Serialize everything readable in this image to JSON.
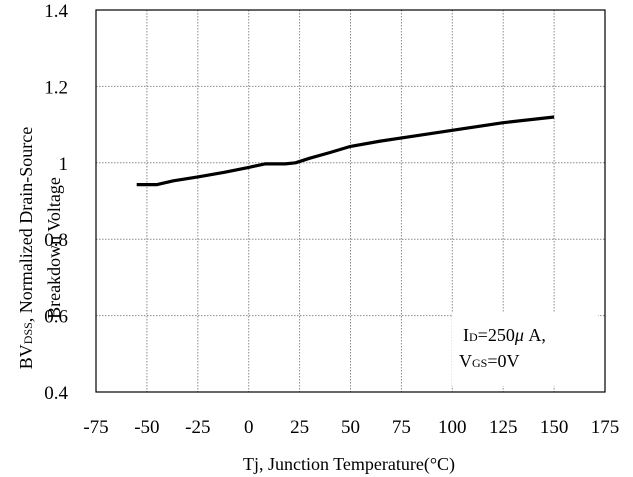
{
  "chart_data": {
    "type": "line",
    "title": "",
    "xlabel": "Tj, Junction Temperature(",
    "xlabel_unit": "°C)",
    "ylabel": {
      "bv": "BV",
      "dss": "DSS",
      "rest": ", Normalized Drain-Source",
      "line2": "Breakdown Voltage"
    },
    "xlim": [
      -75,
      175
    ],
    "ylim": [
      0.4,
      1.4
    ],
    "x_ticks": [
      -75,
      -50,
      -25,
      0,
      25,
      50,
      75,
      100,
      125,
      150,
      175
    ],
    "y_ticks": [
      0.4,
      0.6,
      0.8,
      1.0,
      1.2,
      1.4
    ],
    "x_tick_labels": [
      "-75",
      "-50",
      "-25",
      "0",
      "25",
      "50",
      "75",
      "100",
      "125",
      "150",
      "175"
    ],
    "y_tick_labels": [
      "0.4",
      "0.6",
      "0.8",
      "1",
      "1.2",
      "1.4"
    ],
    "grid": true,
    "series": [
      {
        "color": "#000000",
        "x": [
          -55,
          -45,
          -37,
          -25,
          -12,
          0,
          8,
          18,
          23,
          30,
          40,
          50,
          65,
          80,
          100,
          125,
          150
        ],
        "y": [
          0.943,
          0.943,
          0.953,
          0.963,
          0.975,
          0.988,
          0.997,
          0.997,
          1.0,
          1.012,
          1.027,
          1.043,
          1.057,
          1.069,
          1.085,
          1.105,
          1.12
        ]
      }
    ],
    "annotation": {
      "line1_i": "I",
      "line1_d": "D",
      "line1_rest": "=250",
      "line1_mu": "μ",
      "line1_unit": " A,",
      "line2_v": "V",
      "line2_gs": "GS",
      "line2_rest": "=0V"
    }
  }
}
